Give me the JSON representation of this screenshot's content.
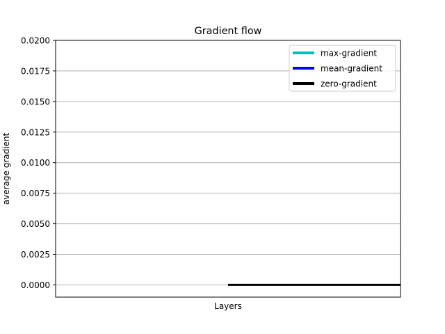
{
  "chart_data": {
    "type": "bar",
    "title": "Gradient flow",
    "xlabel": "Layers",
    "ylabel": "average gradient",
    "ylim": [
      -0.001,
      0.02
    ],
    "yticks": [
      0.0,
      0.0025,
      0.005,
      0.0075,
      0.01,
      0.0125,
      0.015,
      0.0175,
      0.02
    ],
    "ytick_labels": [
      "0.0000",
      "0.0025",
      "0.0050",
      "0.0075",
      "0.0100",
      "0.0125",
      "0.0150",
      "0.0175",
      "0.0200"
    ],
    "grid": "horizontal",
    "legend_position": "top-right",
    "legend": [
      {
        "label": "max-gradient",
        "color": "#00bfbf"
      },
      {
        "label": "mean-gradient",
        "color": "#0000ff"
      },
      {
        "label": "zero-gradient",
        "color": "#000000"
      }
    ],
    "series": [
      {
        "name": "max-gradient",
        "values": []
      },
      {
        "name": "mean-gradient",
        "values": []
      }
    ],
    "zero_line": {
      "y": 0.0,
      "x_from_fraction": 0.5,
      "x_to_fraction": 1.0,
      "color": "#000000"
    }
  }
}
